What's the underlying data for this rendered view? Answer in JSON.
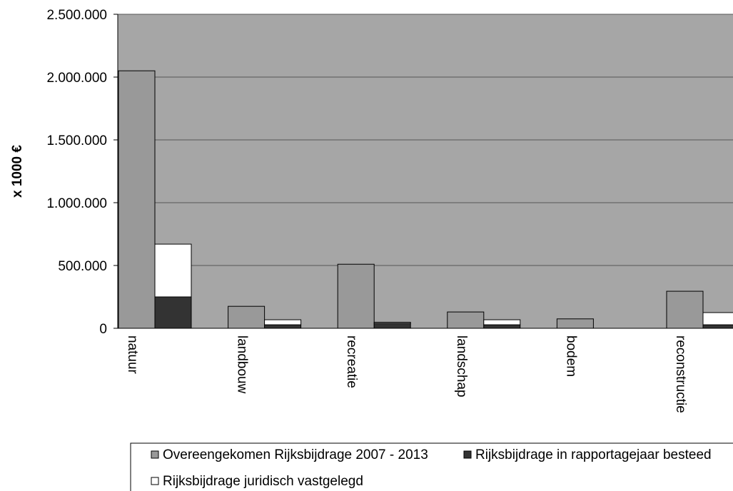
{
  "chart_data": {
    "type": "bar",
    "y_label": "x 1000 €",
    "categories": [
      "natuur",
      "landbouw",
      "recreatie",
      "landschap",
      "bodem",
      "reconstructie"
    ],
    "series": [
      {
        "name": "Overeengekomen Rijksbijdrage 2007 - 2013",
        "color": "#999999",
        "values": [
          2050000,
          175000,
          510000,
          130000,
          75000,
          295000
        ]
      },
      {
        "name": "Rijksbijdrage in rapportagejaar besteed",
        "color": "#333333",
        "stack": "b",
        "values": [
          250000,
          28000,
          40000,
          28000,
          0,
          28000
        ]
      },
      {
        "name": "Rijksbijdrage juridisch vastgelegd",
        "color": "#ffffff",
        "stack": "b",
        "values": [
          420000,
          40000,
          8000,
          40000,
          0,
          97000
        ]
      }
    ],
    "ylim": [
      0,
      2500000
    ],
    "yticks": [
      0,
      {
        "value": 500000,
        "label": "500.000"
      },
      {
        "value": 1000000,
        "label": "1.000.000"
      },
      {
        "value": 1500000,
        "label": "1.500.000"
      },
      {
        "value": 2000000,
        "label": "2.000.000"
      },
      {
        "value": 2500000,
        "label": "2.500.000"
      }
    ],
    "grid": true,
    "plot_color": "#a6a6a6"
  }
}
